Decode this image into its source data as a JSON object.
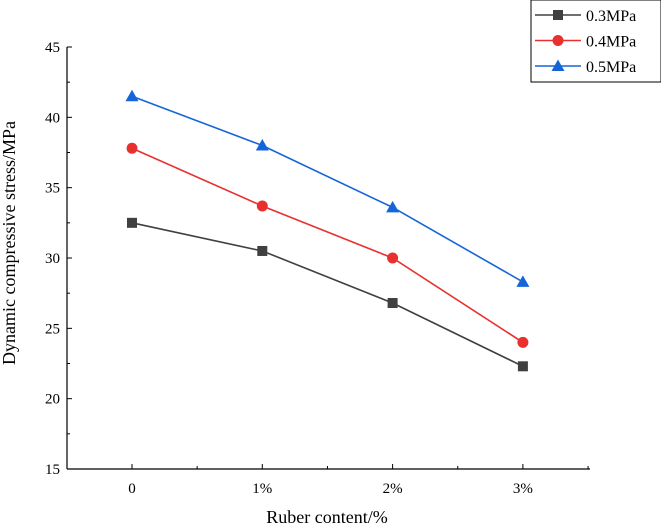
{
  "chart_data": {
    "type": "line",
    "title": "",
    "xlabel": "Ruber  content/%",
    "ylabel": "Dynamic compressive stress/MPa",
    "categories": [
      "0",
      "1%",
      "2%",
      "3%"
    ],
    "ylim": [
      15,
      45
    ],
    "yticks": [
      15,
      20,
      25,
      30,
      35,
      40,
      45
    ],
    "grid": false,
    "legend_position": "top-right",
    "series": [
      {
        "name": "0.3MPa",
        "color": "#404040",
        "marker": "square",
        "values": [
          32.5,
          30.5,
          26.8,
          22.3
        ]
      },
      {
        "name": "0.4MPa",
        "color": "#e8312f",
        "marker": "circle",
        "values": [
          37.8,
          33.7,
          30.0,
          24.0
        ]
      },
      {
        "name": "0.5MPa",
        "color": "#1565d8",
        "marker": "triangle",
        "values": [
          41.5,
          38.0,
          33.6,
          28.3
        ]
      }
    ]
  }
}
